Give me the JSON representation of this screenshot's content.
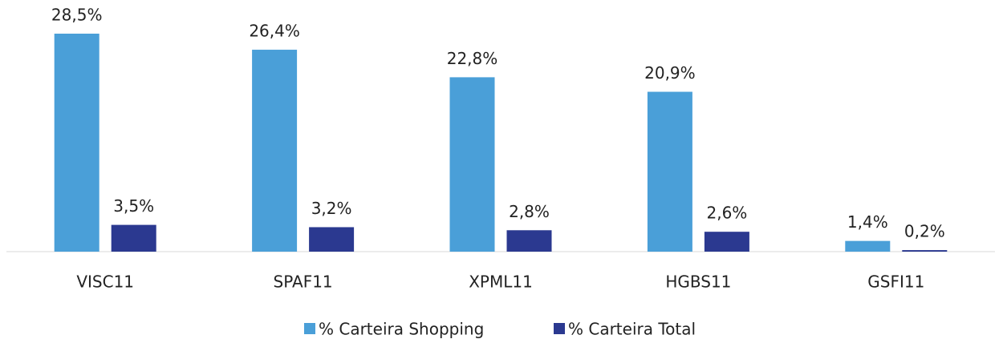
{
  "chart_data": {
    "type": "bar",
    "categories": [
      "VISC11",
      "SPAF11",
      "XPML11",
      "HGBS11",
      "GSFI11"
    ],
    "series": [
      {
        "name": "% Carteira Shopping",
        "color": "#4a9fd8",
        "values": [
          28.5,
          26.4,
          22.8,
          20.9,
          1.4
        ],
        "value_labels": [
          "28,5%",
          "26,4%",
          "22,8%",
          "20,9%",
          "1,4%"
        ]
      },
      {
        "name": "% Carteira Total",
        "color": "#2b3990",
        "values": [
          3.5,
          3.2,
          2.8,
          2.6,
          0.2
        ],
        "value_labels": [
          "3,5%",
          "3,2%",
          "2,8%",
          "2,6%",
          "0,2%"
        ]
      }
    ],
    "legend": "bottom"
  }
}
